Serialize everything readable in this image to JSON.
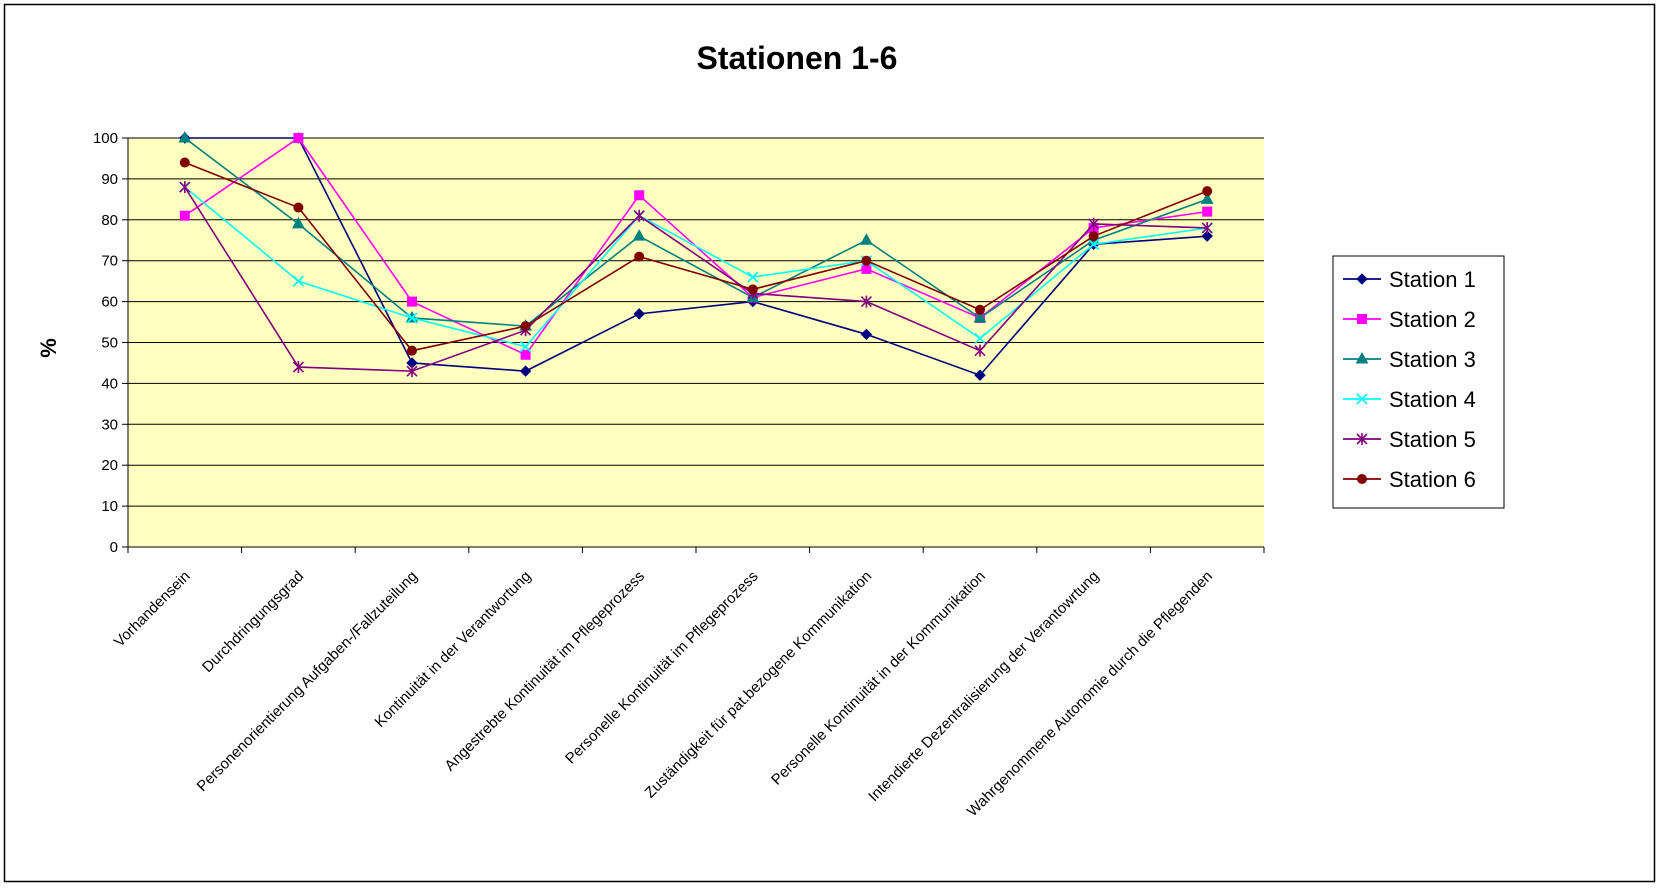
{
  "chart_data": {
    "type": "line",
    "title": "Stationen 1-6",
    "xlabel": "",
    "ylabel": "%",
    "ylim": [
      0,
      100
    ],
    "yticks": [
      0,
      10,
      20,
      30,
      40,
      50,
      60,
      70,
      80,
      90,
      100
    ],
    "grid": "horizontal",
    "legend_position": "right",
    "plot_background": "#FFFFC0",
    "categories": [
      "Vorhandensein",
      "Durchdringungsgrad",
      "Personenorientierung Aufgaben-/Fallzuteilung",
      "Kontinuität in der Verantwortung",
      "Angestrebte Kontinuität im Pflegeprozess",
      "Personelle Kontinuität im Pflegeprozess",
      "Zuständigkeit für pat.bezogene Kommunikation",
      "Personelle Kontinuität in der Kommunikation",
      "Intendierte Dezentralisierung der Verantowrtung",
      "Wahrgenommene Autonomie durch die Pflegenden"
    ],
    "series": [
      {
        "name": "Station 1",
        "color": "#000080",
        "marker": "diamond",
        "values": [
          100,
          100,
          45,
          43,
          57,
          60,
          52,
          42,
          74,
          76
        ]
      },
      {
        "name": "Station 2",
        "color": "#FF00FF",
        "marker": "square",
        "values": [
          81,
          100,
          60,
          47,
          86,
          61,
          68,
          56,
          78,
          82
        ]
      },
      {
        "name": "Station 3",
        "color": "#008080",
        "marker": "triangle",
        "values": [
          100,
          79,
          56,
          54,
          76,
          61,
          75,
          56,
          75,
          85
        ]
      },
      {
        "name": "Station 4",
        "color": "#00FFFF",
        "marker": "x",
        "values": [
          88,
          65,
          56,
          49,
          81,
          66,
          70,
          51,
          74,
          78
        ]
      },
      {
        "name": "Station 5",
        "color": "#800080",
        "marker": "star",
        "values": [
          88,
          44,
          43,
          53,
          81,
          62,
          60,
          48,
          79,
          78
        ]
      },
      {
        "name": "Station 6",
        "color": "#800000",
        "marker": "circle",
        "values": [
          94,
          83,
          48,
          54,
          71,
          63,
          70,
          58,
          76,
          87
        ]
      }
    ]
  }
}
